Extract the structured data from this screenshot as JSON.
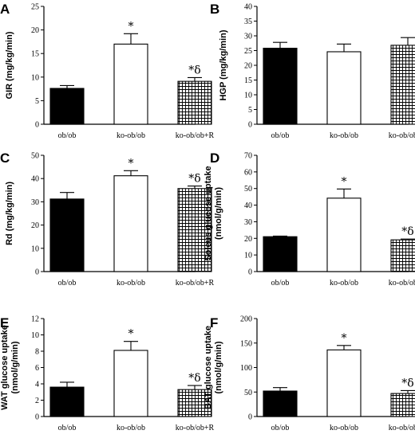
{
  "figure": {
    "background": "#ffffff",
    "colors": {
      "ob/ob": "#000000",
      "ko-ob/ob": "#ffffff",
      "ko-ob/ob+R": "hatched"
    }
  },
  "chart_data": [
    {
      "panel": "A",
      "type": "bar",
      "categories": [
        "ob/ob",
        "ko-ob/ob",
        "ko-ob/ob+R"
      ],
      "values": [
        7.6,
        17.0,
        9.1
      ],
      "errors": [
        0.6,
        2.2,
        0.8
      ],
      "annotations": [
        "",
        "*",
        "*δ"
      ],
      "title": "",
      "xlabel": "",
      "ylabel": "GIR (mg/kg/min)",
      "ylim": [
        0,
        25
      ],
      "yticks": [
        0,
        5,
        10,
        15,
        20,
        25
      ],
      "legend": "none",
      "grid": false
    },
    {
      "panel": "B",
      "type": "bar",
      "categories": [
        "ob/ob",
        "ko-ob/ob",
        "ko-ob/ob+R"
      ],
      "values": [
        25.8,
        24.6,
        26.8
      ],
      "errors": [
        2.0,
        2.6,
        2.6
      ],
      "annotations": [
        "",
        "",
        ""
      ],
      "title": "",
      "xlabel": "",
      "ylabel": "HGP (mg/kg/min)",
      "ylim": [
        0,
        40
      ],
      "yticks": [
        0,
        5,
        10,
        15,
        20,
        25,
        30,
        35,
        40
      ],
      "legend": "none",
      "grid": false
    },
    {
      "panel": "C",
      "type": "bar",
      "categories": [
        "ob/ob",
        "ko-ob/ob",
        "ko-ob/ob+R"
      ],
      "values": [
        31.2,
        41.2,
        35.7
      ],
      "errors": [
        2.8,
        2.2,
        1.1
      ],
      "annotations": [
        "",
        "*",
        "*δ"
      ],
      "title": "",
      "xlabel": "",
      "ylabel": "Rd (mg/kg/min)",
      "ylim": [
        0,
        50
      ],
      "yticks": [
        0,
        10,
        20,
        30,
        40,
        50
      ],
      "legend": "none",
      "grid": false
    },
    {
      "panel": "D",
      "type": "bar",
      "categories": [
        "ob/ob",
        "ko-ob/ob",
        "ko-ob/ob+R"
      ],
      "values": [
        21.0,
        44.2,
        19.1
      ],
      "errors": [
        0.4,
        5.5,
        0.5
      ],
      "annotations": [
        "",
        "*",
        "*δ"
      ],
      "title": "",
      "xlabel": "",
      "ylabel": "Soleus glucose uptake\n(nmol/g/min)",
      "ylim": [
        0,
        70
      ],
      "yticks": [
        0,
        10,
        20,
        30,
        40,
        50,
        60,
        70
      ],
      "legend": "none",
      "grid": false
    },
    {
      "panel": "E",
      "type": "bar",
      "categories": [
        "ob/ob",
        "ko-ob/ob",
        "ko-ob/ob+R"
      ],
      "values": [
        3.6,
        8.1,
        3.3
      ],
      "errors": [
        0.6,
        1.1,
        0.5
      ],
      "annotations": [
        "",
        "*",
        "*δ"
      ],
      "title": "",
      "xlabel": "",
      "ylabel": "WAT glucose uptake\n(nmol/g/min)",
      "ylim": [
        0,
        12
      ],
      "yticks": [
        0,
        2,
        4,
        6,
        8,
        10,
        12
      ],
      "legend": "none",
      "grid": false
    },
    {
      "panel": "F",
      "type": "bar",
      "categories": [
        "ob/ob",
        "ko-ob/ob",
        "ko-ob/ob+R"
      ],
      "values": [
        52,
        136,
        47
      ],
      "errors": [
        7,
        9,
        6
      ],
      "annotations": [
        "",
        "*",
        "*δ"
      ],
      "title": "",
      "xlabel": "",
      "ylabel": "BAT glucose uptake\n(nmol/g/min)",
      "ylim": [
        0,
        200
      ],
      "yticks": [
        0,
        50,
        100,
        150,
        200
      ],
      "legend": "none",
      "grid": false
    }
  ]
}
